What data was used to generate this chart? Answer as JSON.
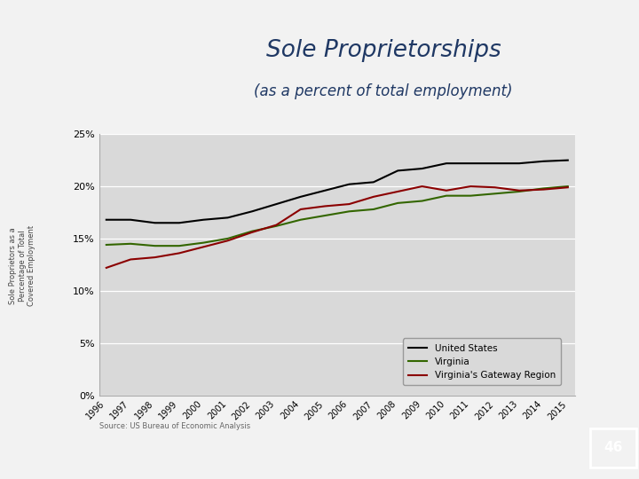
{
  "years": [
    1996,
    1997,
    1998,
    1999,
    2000,
    2001,
    2002,
    2003,
    2004,
    2005,
    2006,
    2007,
    2008,
    2009,
    2010,
    2011,
    2012,
    2013,
    2014,
    2015
  ],
  "us": [
    0.168,
    0.168,
    0.165,
    0.165,
    0.168,
    0.17,
    0.176,
    0.183,
    0.19,
    0.196,
    0.202,
    0.204,
    0.215,
    0.217,
    0.222,
    0.222,
    0.222,
    0.222,
    0.224,
    0.225
  ],
  "virginia": [
    0.144,
    0.145,
    0.143,
    0.143,
    0.146,
    0.15,
    0.157,
    0.162,
    0.168,
    0.172,
    0.176,
    0.178,
    0.184,
    0.186,
    0.191,
    0.191,
    0.193,
    0.195,
    0.198,
    0.2
  ],
  "gateway": [
    0.122,
    0.13,
    0.132,
    0.136,
    0.142,
    0.148,
    0.156,
    0.163,
    0.178,
    0.181,
    0.183,
    0.19,
    0.195,
    0.2,
    0.196,
    0.2,
    0.199,
    0.196,
    0.197,
    0.199
  ],
  "us_color": "#000000",
  "virginia_color": "#336600",
  "gateway_color": "#8B0000",
  "title": "Sole Proprietorships",
  "subtitle": "(as a percent of total employment)",
  "ylim": [
    0,
    0.25
  ],
  "yticks": [
    0.0,
    0.05,
    0.1,
    0.15,
    0.2,
    0.25
  ],
  "ytick_labels": [
    "0%",
    "5%",
    "10%",
    "15%",
    "20%",
    "25%"
  ],
  "legend_labels": [
    "United States",
    "Virginia",
    "Virginia's Gateway Region"
  ],
  "source_text": "Source: US Bureau of Economic Analysis",
  "plot_bg_color": "#d9d9d9",
  "fig_bg_color": "#f2f2f2",
  "title_color": "#1f3864",
  "right_bar_color": "#4caf50",
  "page_number": "46"
}
